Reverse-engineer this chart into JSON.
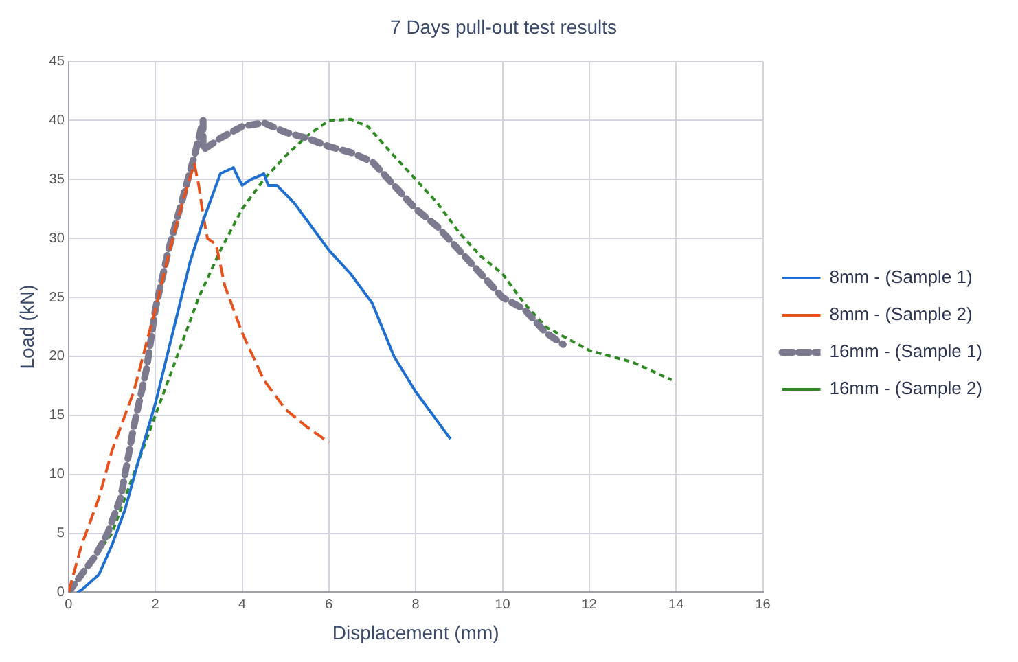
{
  "chart_data": {
    "type": "line",
    "title": "7 Days pull-out test results",
    "xlabel": "Displacement (mm)",
    "ylabel": "Load (kN)",
    "xlim": [
      0,
      16
    ],
    "xticks": [
      0,
      2,
      4,
      6,
      8,
      10,
      12,
      14,
      16
    ],
    "ylim": [
      0,
      45
    ],
    "yticks": [
      0,
      5,
      10,
      15,
      20,
      25,
      30,
      35,
      40,
      45
    ],
    "grid": true,
    "legend": "right",
    "marker": "none",
    "series": [
      {
        "name": "8mm - (Sample 1)",
        "color": "#1f6fd1",
        "line_style": "solid",
        "x": [
          0.2,
          0.3,
          0.7,
          1.0,
          1.3,
          1.6,
          2,
          2.4,
          2.8,
          3.1,
          3.5,
          3.8,
          3.9,
          4.0,
          4.2,
          4.4,
          4.5,
          4.6,
          4.8,
          5.2,
          5.6,
          6,
          6.5,
          7,
          7.5,
          8,
          8.5,
          8.8
        ],
        "values": [
          0,
          0.2,
          1.5,
          4,
          7,
          11,
          16,
          22,
          28,
          31.5,
          35.5,
          36,
          35.2,
          34.5,
          35,
          35.3,
          35.5,
          34.5,
          34.5,
          33,
          31,
          29,
          27,
          24.5,
          20,
          17,
          14.5,
          13
        ]
      },
      {
        "name": "8mm - (Sample 2)",
        "color": "#e8501c",
        "line_style": "dashed",
        "x": [
          0,
          0.3,
          0.7,
          1,
          1.5,
          2,
          2.4,
          2.7,
          2.9,
          3.0,
          3.1,
          3.2,
          3.4,
          3.6,
          4,
          4.5,
          5,
          5.5,
          6
        ],
        "values": [
          0,
          4,
          8,
          12,
          17,
          24,
          30,
          34,
          36.3,
          34.5,
          32,
          30,
          29.5,
          26,
          22,
          18,
          15.5,
          14,
          12.7
        ]
      },
      {
        "name": "16mm - (Sample 1)",
        "color": "#7b7a8e",
        "line_style": "dashed",
        "x": [
          0,
          0.3,
          0.6,
          0.9,
          1.2,
          1.5,
          1.8,
          2,
          2.3,
          2.6,
          2.9,
          3.1,
          3.1,
          3.5,
          4,
          4.5,
          5,
          5.5,
          6,
          6.5,
          7,
          7.5,
          8,
          8.5,
          9,
          9.5,
          10,
          10.5,
          11,
          11.4
        ],
        "values": [
          0,
          1.5,
          3,
          5,
          8,
          14,
          19,
          24,
          29,
          33,
          37,
          40,
          37.5,
          38.5,
          39.5,
          39.8,
          39,
          38.5,
          37.8,
          37.3,
          36.5,
          34.5,
          32.5,
          31,
          29,
          27,
          25,
          24,
          22,
          21
        ]
      },
      {
        "name": "16mm - (Sample 2)",
        "color": "#2e8b22",
        "line_style": "dotted",
        "x": [
          0,
          0.5,
          1,
          1.5,
          2,
          2.5,
          3,
          3.5,
          4,
          4.5,
          5,
          5.5,
          6,
          6.5,
          6.9,
          7.5,
          8,
          8.5,
          9,
          9.5,
          10,
          10.5,
          11,
          12,
          13,
          13.9
        ],
        "values": [
          0,
          2.5,
          5,
          10,
          15,
          20,
          25,
          29,
          32.5,
          35,
          37,
          38.7,
          40,
          40.1,
          39.5,
          37,
          35,
          33,
          30.5,
          28.5,
          27,
          24.5,
          22.5,
          20.5,
          19.5,
          18
        ]
      }
    ]
  }
}
